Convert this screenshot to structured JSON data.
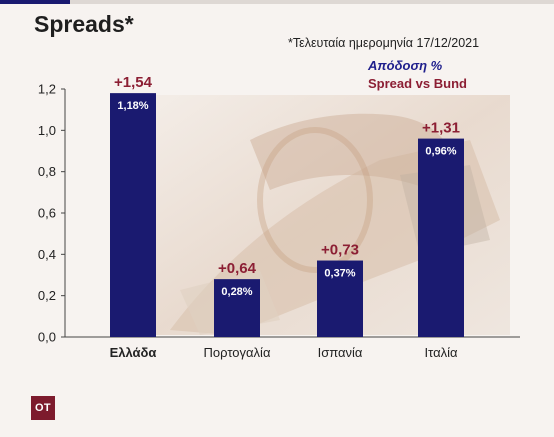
{
  "header": {
    "title": "Spreads*",
    "note": "*Τελευταία ημερομηνία 17/12/2021"
  },
  "legend": {
    "yield_label": "Απόδοση %",
    "spread_label": "Spread vs Bund"
  },
  "logo": {
    "text": "OT"
  },
  "colors": {
    "bar": "#1a1a70",
    "spread": "#8c1f34",
    "yield_legend": "#1f1f8c",
    "logo_bg": "#7d1b2d"
  },
  "chart_data": {
    "type": "bar",
    "categories": [
      "Ελλάδα",
      "Πορτογαλία",
      "Ισπανία",
      "Ιταλία"
    ],
    "values": [
      1.18,
      0.28,
      0.37,
      0.96
    ],
    "value_labels": [
      "1,18%",
      "0,28%",
      "0,37%",
      "0,96%"
    ],
    "spreads": [
      1.54,
      0.64,
      0.73,
      1.31
    ],
    "spread_labels": [
      "+1,54",
      "+0,64",
      "+0,73",
      "+1,31"
    ],
    "ylim": [
      0,
      1.2
    ],
    "yticks": [
      0,
      0.2,
      0.4,
      0.6,
      0.8,
      1.0,
      1.2
    ],
    "ytick_labels": [
      "0,0",
      "0,2",
      "0,4",
      "0,6",
      "0,8",
      "1,0",
      "1,2"
    ],
    "bold_category": "Ελλάδα",
    "grid": false
  }
}
